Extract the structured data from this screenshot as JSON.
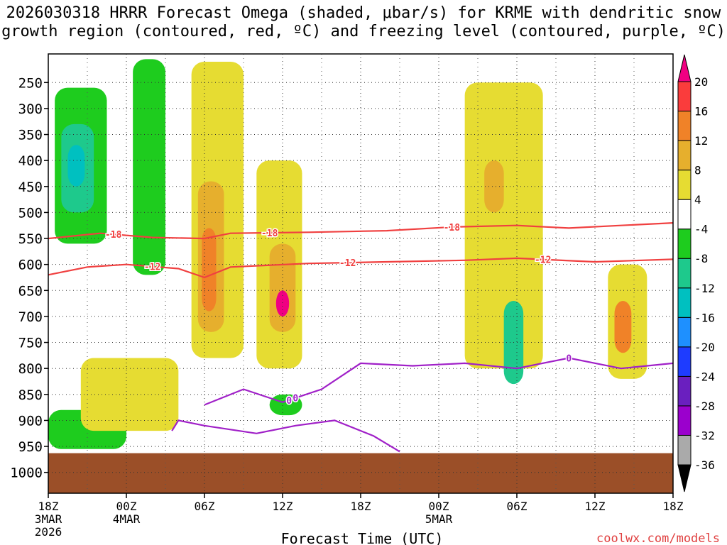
{
  "chart_data": {
    "type": "heatmap",
    "title": {
      "line1": "2026030318 HRRR Forecast Omega (shaded, μbar/s) for KRME with dendritic snow",
      "line2": "growth region (contoured, red, ºC) and freezing level (contoured, purple, ºC)"
    },
    "xlabel": "Forecast Time (UTC)",
    "ylabel": "",
    "credit": "coolwx.com/models",
    "x_range_hours": [
      0,
      48
    ],
    "x_ticks": [
      {
        "hour": 0,
        "label": "18Z",
        "date": "3MAR",
        "year": "2026"
      },
      {
        "hour": 6,
        "label": "00Z",
        "date": "4MAR",
        "year": ""
      },
      {
        "hour": 12,
        "label": "06Z",
        "date": "",
        "year": ""
      },
      {
        "hour": 18,
        "label": "12Z",
        "date": "",
        "year": ""
      },
      {
        "hour": 24,
        "label": "18Z",
        "date": "",
        "year": ""
      },
      {
        "hour": 30,
        "label": "00Z",
        "date": "5MAR",
        "year": ""
      },
      {
        "hour": 36,
        "label": "06Z",
        "date": "",
        "year": ""
      },
      {
        "hour": 42,
        "label": "12Z",
        "date": "",
        "year": ""
      },
      {
        "hour": 48,
        "label": "18Z",
        "date": "",
        "year": ""
      }
    ],
    "y_range_hpa": [
      1040,
      195
    ],
    "y_ticks": [
      250,
      300,
      350,
      400,
      450,
      500,
      550,
      600,
      650,
      700,
      750,
      800,
      850,
      900,
      950,
      1000
    ],
    "grid": true,
    "colorbar": {
      "levels": [
        -36,
        -32,
        -28,
        -24,
        -20,
        -16,
        -12,
        -8,
        -4,
        4,
        8,
        12,
        16,
        20
      ],
      "label_levels": [
        -36,
        -32,
        -28,
        -24,
        -20,
        -16,
        -12,
        -8,
        -4,
        4,
        8,
        12,
        16,
        20
      ],
      "colors": [
        "#000000",
        "#aaaaaa",
        "#9b00cd",
        "#6a1fbf",
        "#1e3cff",
        "#1e90ff",
        "#00c0c0",
        "#1ec98c",
        "#1ecc1e",
        "#ffffff",
        "#e6dc32",
        "#e6af2d",
        "#f08228",
        "#fa3c3c",
        "#f00082"
      ]
    },
    "omega_cells": [
      {
        "t0": 0.5,
        "t1": 4.5,
        "p0": 260,
        "p1": 560,
        "value": -5
      },
      {
        "t0": 6.5,
        "t1": 9.0,
        "p0": 205,
        "p1": 620,
        "value": -5
      },
      {
        "t0": 1.0,
        "t1": 3.5,
        "p0": 330,
        "p1": 500,
        "value": -9
      },
      {
        "t0": 1.5,
        "t1": 2.8,
        "p0": 370,
        "p1": 450,
        "value": -13
      },
      {
        "t0": 0.0,
        "t1": 6.0,
        "p0": 880,
        "p1": 955,
        "value": -5
      },
      {
        "t0": 11.0,
        "t1": 15.0,
        "p0": 210,
        "p1": 780,
        "value": 5
      },
      {
        "t0": 11.5,
        "t1": 13.5,
        "p0": 440,
        "p1": 730,
        "value": 9
      },
      {
        "t0": 11.8,
        "t1": 12.9,
        "p0": 530,
        "p1": 690,
        "value": 15
      },
      {
        "t0": 16.0,
        "t1": 19.5,
        "p0": 400,
        "p1": 800,
        "value": 5
      },
      {
        "t0": 17.0,
        "t1": 19.0,
        "p0": 560,
        "p1": 730,
        "value": 10
      },
      {
        "t0": 17.5,
        "t1": 18.5,
        "p0": 650,
        "p1": 700,
        "value": 20
      },
      {
        "t0": 32.0,
        "t1": 38.0,
        "p0": 250,
        "p1": 800,
        "value": 5
      },
      {
        "t0": 33.5,
        "t1": 35.0,
        "p0": 400,
        "p1": 500,
        "value": 9
      },
      {
        "t0": 35.0,
        "t1": 36.5,
        "p0": 670,
        "p1": 830,
        "value": -9
      },
      {
        "t0": 43.0,
        "t1": 46.0,
        "p0": 600,
        "p1": 820,
        "value": 6
      },
      {
        "t0": 43.5,
        "t1": 44.8,
        "p0": 670,
        "p1": 770,
        "value": 14
      },
      {
        "t0": 2.5,
        "t1": 10.0,
        "p0": 780,
        "p1": 920,
        "value": 5
      },
      {
        "t0": 17.0,
        "t1": 19.5,
        "p0": 850,
        "p1": 890,
        "value": -6
      }
    ],
    "contours": [
      {
        "name": "dgz -18C",
        "color": "#f04040",
        "label": "-18",
        "label_positions": [
          5,
          17,
          31
        ],
        "points": [
          [
            0,
            550
          ],
          [
            4,
            540
          ],
          [
            8,
            548
          ],
          [
            12,
            550
          ],
          [
            14,
            540
          ],
          [
            20,
            538
          ],
          [
            26,
            535
          ],
          [
            31,
            528
          ],
          [
            36,
            525
          ],
          [
            40,
            530
          ],
          [
            44,
            525
          ],
          [
            48,
            520
          ]
        ]
      },
      {
        "name": "dgz -12C",
        "color": "#f04040",
        "label": "-12",
        "label_positions": [
          8,
          23,
          38
        ],
        "points": [
          [
            0,
            620
          ],
          [
            3,
            605
          ],
          [
            6,
            600
          ],
          [
            10,
            608
          ],
          [
            12,
            625
          ],
          [
            14,
            605
          ],
          [
            20,
            598
          ],
          [
            26,
            595
          ],
          [
            32,
            592
          ],
          [
            36,
            588
          ],
          [
            42,
            595
          ],
          [
            48,
            590
          ]
        ]
      },
      {
        "name": "freezing level 0C",
        "color": "#a020c8",
        "label": "0",
        "label_positions": [
          18.5,
          19,
          40
        ],
        "points": [
          [
            12,
            870
          ],
          [
            15,
            840
          ],
          [
            18,
            865
          ],
          [
            21,
            840
          ],
          [
            24,
            790
          ],
          [
            28,
            795
          ],
          [
            32,
            790
          ],
          [
            36,
            800
          ],
          [
            40,
            780
          ],
          [
            44,
            800
          ],
          [
            48,
            790
          ]
        ]
      },
      {
        "name": "freezing level 0C lower",
        "color": "#a020c8",
        "label": "",
        "label_positions": [],
        "points": [
          [
            9.5,
            920
          ],
          [
            10,
            900
          ],
          [
            12,
            910
          ],
          [
            16,
            925
          ],
          [
            19,
            910
          ],
          [
            22,
            900
          ],
          [
            25,
            930
          ],
          [
            27,
            960
          ]
        ]
      }
    ]
  }
}
